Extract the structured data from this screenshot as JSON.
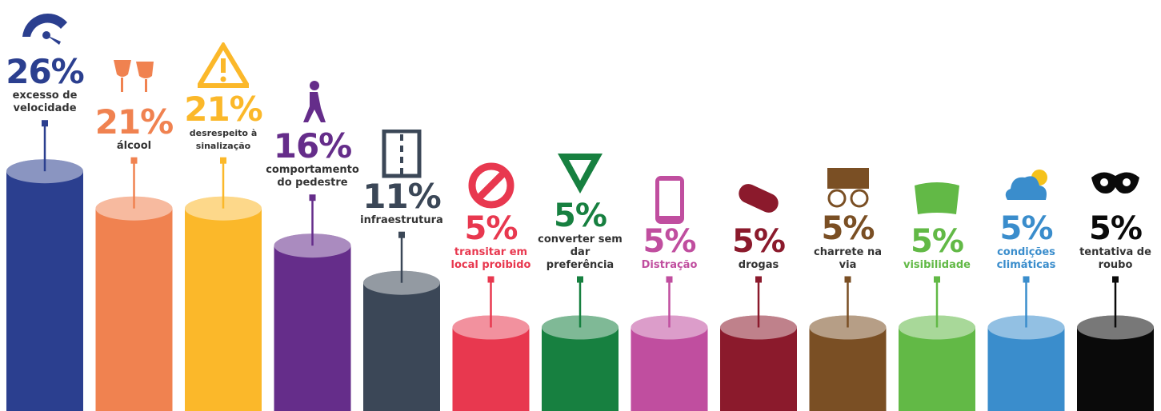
{
  "chart_data": {
    "type": "bar",
    "categories": [
      "excesso de velocidade",
      "álcool",
      "desrespeito à sinalização",
      "comportamento do pedestre",
      "infraestrutura",
      "transitar em local proibido",
      "converter sem dar preferência",
      "Distração",
      "drogas",
      "charrete na via",
      "visibilidade",
      "condições climáticas",
      "tentativa de roubo"
    ],
    "values": [
      26,
      21,
      21,
      16,
      11,
      5,
      5,
      5,
      5,
      5,
      5,
      5,
      5
    ],
    "value_labels": [
      "26%",
      "21%",
      "21%",
      "16%",
      "11%",
      "5%",
      "5%",
      "5%",
      "5%",
      "5%",
      "5%",
      "5%",
      "5%"
    ],
    "colors": [
      "#2b3f8f",
      "#f08250",
      "#fbb82a",
      "#652d8a",
      "#3b4757",
      "#e8384f",
      "#178040",
      "#c04e9f",
      "#8b1a2c",
      "#7a4f24",
      "#62b946",
      "#3a8dcc",
      "#0a0a0a"
    ],
    "label_colors": [
      "#333333",
      "#333333",
      "#333333",
      "#333333",
      "#333333",
      "#e8384f",
      "#333333",
      "#c04e9f",
      "#333333",
      "#333333",
      "#62b946",
      "#3a8dcc",
      "#333333"
    ]
  }
}
